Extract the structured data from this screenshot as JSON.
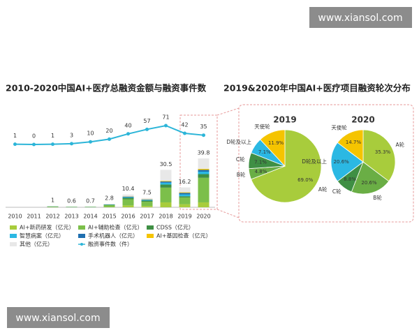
{
  "watermarks": [
    "www.xiansol.com",
    "www.xiansol.com"
  ],
  "panel_title": "2019&2020年中国AI+医疗项目融资轮次分布",
  "chart_data": [
    {
      "type": "bar",
      "stacked": true,
      "title": "2010-2020中国AI+医疗总融资金额与融资事件数",
      "categories": [
        "2010",
        "2011",
        "2012",
        "2013",
        "2014",
        "2015",
        "2016",
        "2017",
        "2018",
        "2019",
        "2020"
      ],
      "totals": [
        null,
        null,
        1,
        0.6,
        0.7,
        2.8,
        10.4,
        7.5,
        30.5,
        16.2,
        39.8
      ],
      "series": [
        {
          "name": "AI+新药研发（亿元）",
          "color": "#a8cc3c",
          "values": [
            null,
            null,
            0,
            0,
            0,
            0.2,
            1.5,
            1.0,
            4.0,
            2.5,
            4.0
          ]
        },
        {
          "name": "AI+辅助检查（亿元）",
          "color": "#7cbf4a",
          "values": [
            null,
            null,
            0.5,
            0.3,
            0.3,
            1.5,
            5.0,
            3.5,
            12.0,
            5.5,
            20.0
          ]
        },
        {
          "name": "CDSS（亿元）",
          "color": "#3f8f44",
          "values": [
            null,
            null,
            0.2,
            0.1,
            0.1,
            0.4,
            1.2,
            1.0,
            2.5,
            1.0,
            3.0
          ]
        },
        {
          "name": "智慧病案（亿元）",
          "color": "#2bb8e3",
          "values": [
            null,
            null,
            0.1,
            0.1,
            0.1,
            0.2,
            0.5,
            0.5,
            1.5,
            1.5,
            2.0
          ]
        },
        {
          "name": "手术机器人（亿元）",
          "color": "#1f6fb0",
          "values": [
            null,
            null,
            0,
            0,
            0,
            0.1,
            0.5,
            0.3,
            1.0,
            1.2,
            1.5
          ]
        },
        {
          "name": "AI+基因检查（亿元）",
          "color": "#f5c400",
          "values": [
            null,
            null,
            0,
            0,
            0,
            0,
            0.2,
            0.2,
            0.5,
            0.5,
            0.8
          ]
        },
        {
          "name": "其他（亿元）",
          "color": "#e8e8e8",
          "values": [
            null,
            null,
            0.2,
            0.1,
            0.2,
            0.4,
            1.5,
            1.0,
            9.0,
            4.0,
            8.5
          ]
        },
        {
          "name": "融资事件数（件）",
          "type": "line",
          "color": "#2cb5d8",
          "values": [
            1,
            0,
            1,
            3,
            10,
            20,
            40,
            57,
            71,
            42,
            35
          ]
        }
      ]
    },
    {
      "type": "pie",
      "title": "2019",
      "categories": [
        "A轮",
        "B轮",
        "C轮",
        "D轮及以上",
        "天使轮"
      ],
      "values": [
        69.0,
        4.8,
        7.1,
        7.1,
        11.9
      ],
      "value_labels": [
        "69.0%",
        "4.8%",
        "7.1%",
        "7.1%",
        "11.9%"
      ],
      "colors": [
        "#a8cc3c",
        "#6aae45",
        "#3f8f44",
        "#2bb8e3",
        "#f5c400"
      ]
    },
    {
      "type": "pie",
      "title": "2020",
      "categories": [
        "A轮",
        "B轮",
        "C轮",
        "D轮及以上",
        "天使轮"
      ],
      "values": [
        35.3,
        20.6,
        8.8,
        20.6,
        14.7
      ],
      "value_labels": [
        "35.3%",
        "20.6%",
        "8.8%",
        "20.6%",
        "14.7%"
      ],
      "colors": [
        "#a8cc3c",
        "#6aae45",
        "#3f8f44",
        "#2bb8e3",
        "#f5c400"
      ]
    }
  ]
}
